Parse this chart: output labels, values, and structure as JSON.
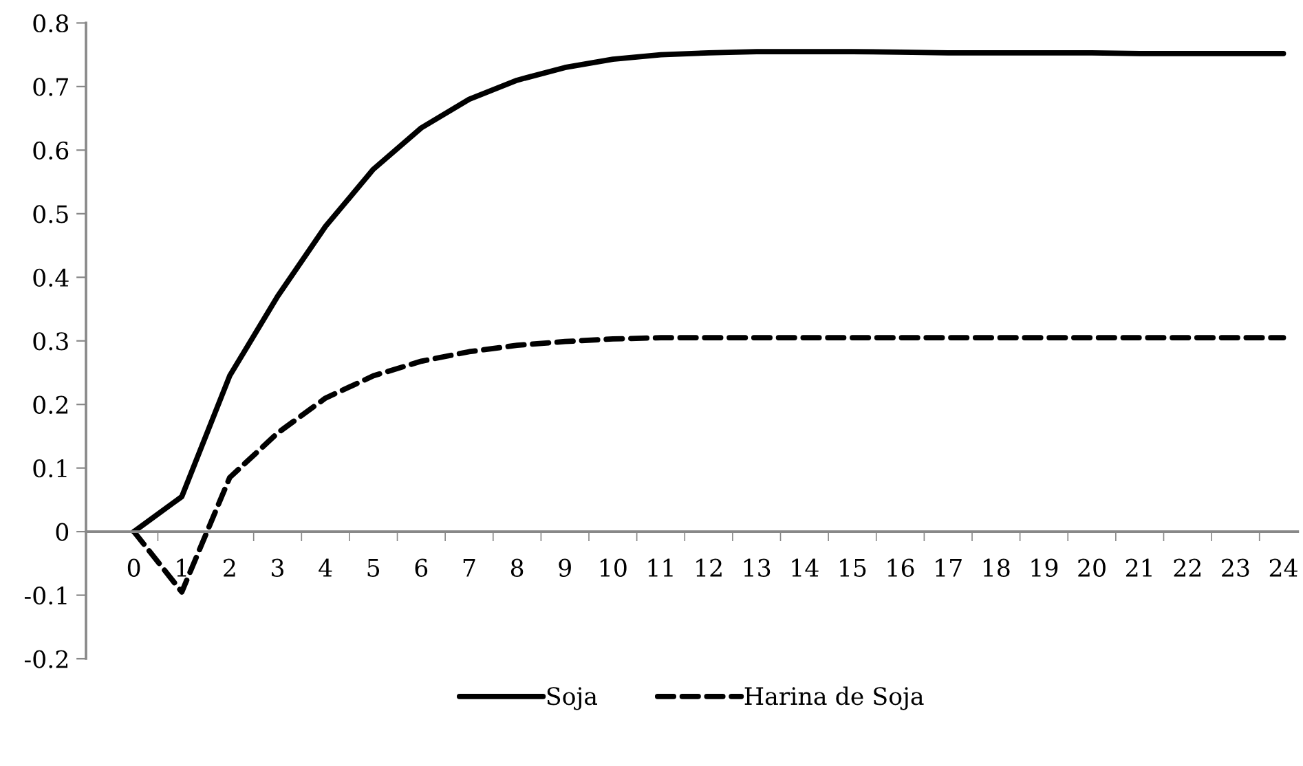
{
  "chart_data": {
    "type": "line",
    "categories": [
      "0",
      "1",
      "2",
      "3",
      "4",
      "5",
      "6",
      "7",
      "8",
      "9",
      "10",
      "11",
      "12",
      "13",
      "14",
      "15",
      "16",
      "17",
      "18",
      "19",
      "20",
      "21",
      "22",
      "23",
      "24"
    ],
    "series": [
      {
        "name": "Soja",
        "color": "#000000",
        "line_style": "solid",
        "values": [
          0,
          0.055,
          0.245,
          0.37,
          0.48,
          0.57,
          0.635,
          0.68,
          0.71,
          0.73,
          0.743,
          0.75,
          0.753,
          0.755,
          0.755,
          0.755,
          0.754,
          0.753,
          0.753,
          0.753,
          0.753,
          0.752,
          0.752,
          0.752,
          0.752
        ]
      },
      {
        "name": "Harina de Soja",
        "color": "#000000",
        "line_style": "dashed",
        "values": [
          0,
          -0.095,
          0.085,
          0.155,
          0.21,
          0.245,
          0.268,
          0.283,
          0.293,
          0.299,
          0.303,
          0.305,
          0.305,
          0.305,
          0.305,
          0.305,
          0.305,
          0.305,
          0.305,
          0.305,
          0.305,
          0.305,
          0.305,
          0.305,
          0.305
        ]
      }
    ],
    "ylim": [
      -0.2,
      0.8
    ],
    "yticks": [
      -0.2,
      -0.1,
      0,
      0.1,
      0.2,
      0.3,
      0.4,
      0.5,
      0.6,
      0.7,
      0.8
    ],
    "grid": false,
    "legend": "bottom",
    "marker": "none"
  }
}
